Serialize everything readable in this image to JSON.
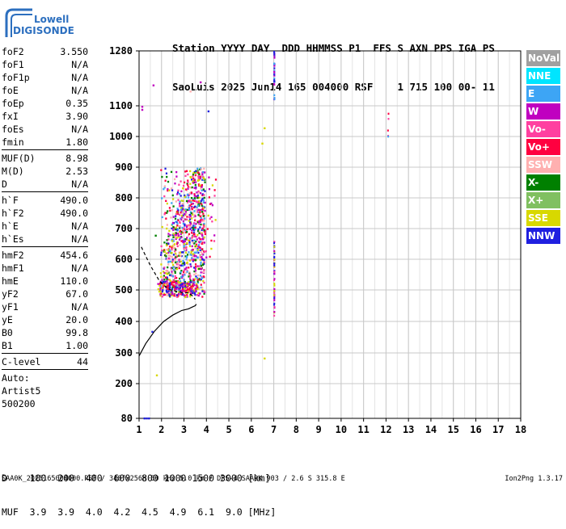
{
  "logo": {
    "line1": "Lowell",
    "line2": "DIGISONDE"
  },
  "header": {
    "line1": "Station YYYY DAY  DDD HHMMSS P1  FFS S AXN PPS IGA PS",
    "line2": "SaoLuis 2025 Jun14 165 004000 RSF    1 715 100 00- 11"
  },
  "params": {
    "group1": [
      {
        "label": "foF2",
        "value": "3.550"
      },
      {
        "label": "foF1",
        "value": "N/A"
      },
      {
        "label": "foF1p",
        "value": "N/A"
      },
      {
        "label": "foE",
        "value": "N/A"
      },
      {
        "label": "foEp",
        "value": "0.35"
      },
      {
        "label": "fxI",
        "value": "3.90"
      },
      {
        "label": "foEs",
        "value": "N/A"
      },
      {
        "label": "fmin",
        "value": "1.80"
      }
    ],
    "group2": [
      {
        "label": "MUF(D)",
        "value": "8.98"
      },
      {
        "label": "M(D)",
        "value": "2.53"
      },
      {
        "label": "D",
        "value": "N/A"
      }
    ],
    "group3": [
      {
        "label": "h`F",
        "value": "490.0"
      },
      {
        "label": "h`F2",
        "value": "490.0"
      },
      {
        "label": "h`E",
        "value": "N/A"
      },
      {
        "label": "h`Es",
        "value": "N/A"
      }
    ],
    "group4": [
      {
        "label": "hmF2",
        "value": "454.6"
      },
      {
        "label": "hmF1",
        "value": "N/A"
      },
      {
        "label": "hmE",
        "value": "110.0"
      },
      {
        "label": "yF2",
        "value": "67.0"
      },
      {
        "label": "yF1",
        "value": "N/A"
      },
      {
        "label": "yE",
        "value": "20.0"
      },
      {
        "label": "B0",
        "value": "99.8"
      },
      {
        "label": "B1",
        "value": "1.00"
      }
    ],
    "group5": [
      {
        "label": "C-level",
        "value": "44"
      }
    ],
    "auto": [
      "Auto:",
      "Artist5",
      "500200"
    ]
  },
  "legend": [
    {
      "label": "NoVal",
      "color": "#a0a0a0"
    },
    {
      "label": "NNE",
      "color": "#00e5ff"
    },
    {
      "label": "E",
      "color": "#3da5f5"
    },
    {
      "label": "W",
      "color": "#c000c0"
    },
    {
      "label": "Vo-",
      "color": "#ff40a0"
    },
    {
      "label": "Vo+",
      "color": "#ff0040"
    },
    {
      "label": "SSW",
      "color": "#ffb0b0"
    },
    {
      "label": "X-",
      "color": "#008000"
    },
    {
      "label": "X+",
      "color": "#80c060"
    },
    {
      "label": "SSE",
      "color": "#d8d800"
    },
    {
      "label": "NNW",
      "color": "#2020e0"
    }
  ],
  "chart_data": {
    "type": "scatter",
    "title": "",
    "xlabel": "",
    "ylabel": "",
    "xlim": [
      1,
      18
    ],
    "ylim": [
      80,
      1280
    ],
    "x_ticks": [
      1,
      2,
      3,
      4,
      5,
      6,
      7,
      8,
      9,
      10,
      11,
      12,
      13,
      14,
      15,
      16,
      17,
      18
    ],
    "y_ticks": [
      80,
      200,
      300,
      400,
      500,
      600,
      700,
      800,
      900,
      1000,
      1100,
      1280
    ],
    "y_scale": "nonlinear (ionogram virtual height)",
    "grid": true,
    "clusters": [
      {
        "name": "main echo band",
        "x_range": [
          1.9,
          3.9
        ],
        "y_range": [
          480,
          900
        ],
        "points": 1000,
        "colors": [
          "#c000c0",
          "#ff40a0",
          "#ff0040",
          "#d8d800",
          "#2020e0",
          "#ffb0b0",
          "#008000",
          "#3da5f5"
        ]
      },
      {
        "name": "spread echoes",
        "x_range": [
          3.2,
          4.4
        ],
        "y_range": [
          600,
          900
        ],
        "points": 60,
        "colors": [
          "#ff0040",
          "#ff40a0",
          "#d8d800",
          "#c000c0"
        ]
      },
      {
        "name": "low trace",
        "x_range": [
          1.8,
          3.6
        ],
        "y_range": [
          485,
          530
        ],
        "points": 120,
        "colors": [
          "#2020e0",
          "#c000c0",
          "#d8d800",
          "#ff0040"
        ]
      },
      {
        "name": "7 MHz upper column",
        "x_range": [
          6.98,
          7.0
        ],
        "y_range": [
          1120,
          1280
        ],
        "points": 40,
        "colors": [
          "#2020e0",
          "#3da5f5",
          "#c000c0"
        ]
      },
      {
        "name": "7 MHz lower column",
        "x_range": [
          6.98,
          7.0
        ],
        "y_range": [
          420,
          660
        ],
        "points": 50,
        "colors": [
          "#2020e0",
          "#d8d800",
          "#c000c0",
          "#ff40a0"
        ]
      },
      {
        "name": "12 MHz echoes",
        "x_range": [
          12.05,
          12.1
        ],
        "y_range": [
          1000,
          1080
        ],
        "points": 5,
        "colors": [
          "#ff0040",
          "#3da5f5",
          "#ff40a0"
        ]
      }
    ],
    "isolated_points": [
      {
        "x": 1.1,
        "y": 1090,
        "color": "#c000c0"
      },
      {
        "x": 1.1,
        "y": 1100,
        "color": "#c000c0"
      },
      {
        "x": 1.6,
        "y": 1170,
        "color": "#c000c0"
      },
      {
        "x": 3.7,
        "y": 1180,
        "color": "#c000c0"
      },
      {
        "x": 3.25,
        "y": 1150,
        "color": "#ffb0b0"
      },
      {
        "x": 4.05,
        "y": 1085,
        "color": "#2020e0"
      },
      {
        "x": 6.45,
        "y": 980,
        "color": "#d8d800"
      },
      {
        "x": 6.55,
        "y": 1030,
        "color": "#d8d800"
      },
      {
        "x": 6.55,
        "y": 285,
        "color": "#d8d800"
      },
      {
        "x": 1.75,
        "y": 230,
        "color": "#d8d800"
      },
      {
        "x": 1.55,
        "y": 370,
        "color": "#2020e0"
      },
      {
        "x": 1.7,
        "y": 680,
        "color": "#008000"
      },
      {
        "x": 1.2,
        "y": 83,
        "color": "#2020e0"
      },
      {
        "x": 1.3,
        "y": 83,
        "color": "#2020e0"
      },
      {
        "x": 1.4,
        "y": 83,
        "color": "#2020e0"
      }
    ],
    "profile_curve": {
      "x": [
        1.0,
        1.3,
        1.7,
        2.1,
        2.5,
        2.9,
        3.2,
        3.35,
        3.5,
        3.55
      ],
      "y": [
        290,
        330,
        370,
        400,
        420,
        435,
        440,
        445,
        450,
        455
      ]
    },
    "trace_curve": {
      "x": [
        1.1,
        1.3,
        1.5,
        1.7,
        1.9,
        2.1,
        2.4,
        2.7,
        3.0,
        3.2,
        3.4,
        3.5
      ],
      "y": [
        640,
        610,
        580,
        555,
        530,
        515,
        500,
        495,
        490,
        492,
        480,
        470
      ]
    }
  },
  "footer": {
    "line1": "D    100  200  400  600  800 1000 1500 3000 [km]",
    "line2": "MUF  3.9  3.9  4.0  4.2  4.5  4.9  6.1  9.0 [MHz]",
    "file": "SAA0K_2025165004000.RSF / 340fx256h 50 kHz 5.0 km / DPS-4 SAA0K 903 / 2.6 S 315.8 E",
    "version": "Ion2Png 1.3.17"
  }
}
